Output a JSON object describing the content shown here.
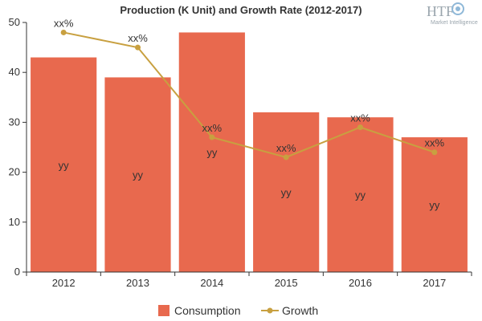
{
  "chart_data": {
    "type": "bar",
    "title": "Production (K Unit) and Growth Rate (2012-2017)",
    "categories": [
      "2012",
      "2013",
      "2014",
      "2015",
      "2016",
      "2017"
    ],
    "ylim": [
      0,
      50
    ],
    "yticks": [
      0,
      10,
      20,
      30,
      40,
      50
    ],
    "grid": false,
    "legend_position": "bottom",
    "series": [
      {
        "name": "Consumption",
        "kind": "bar",
        "color": "#e8694e",
        "values": [
          43,
          39,
          48,
          32,
          31,
          27
        ],
        "labels": [
          "yy",
          "yy",
          "yy",
          "yy",
          "yy",
          "yy"
        ]
      },
      {
        "name": "Growth",
        "kind": "line",
        "color": "#c8a040",
        "values": [
          48,
          45,
          27,
          23,
          29,
          24
        ],
        "labels": [
          "xx%",
          "xx%",
          "xx%",
          "xx%",
          "xx%",
          "xx%"
        ]
      }
    ]
  },
  "logo": {
    "text": "HTF",
    "subtext": "Market Intelligence",
    "icon": "gear-globe-icon"
  }
}
